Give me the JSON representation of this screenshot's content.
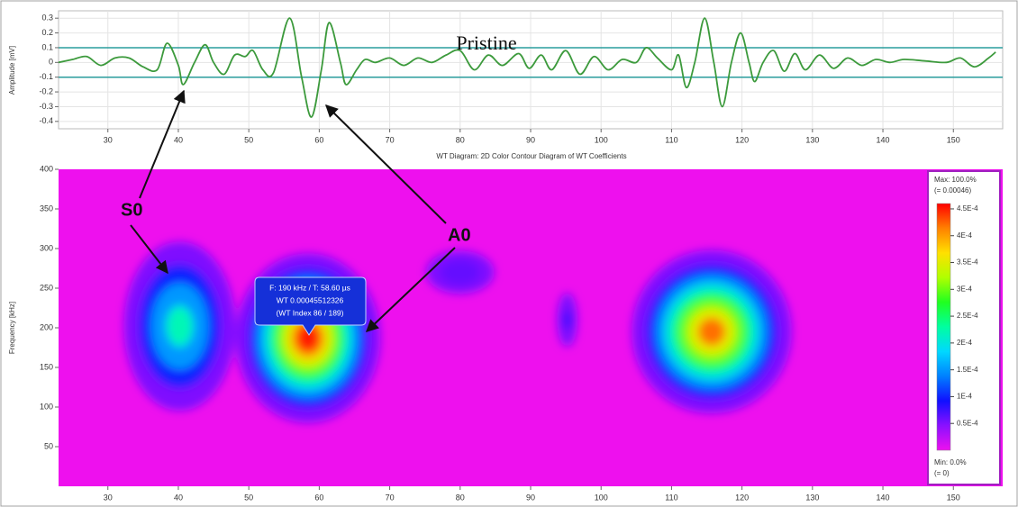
{
  "chart_data": [
    {
      "type": "line",
      "ylabel": "Amplitude [mV]",
      "xlim": [
        23,
        157
      ],
      "xticks": [
        30,
        40,
        50,
        60,
        70,
        80,
        90,
        100,
        110,
        120,
        130,
        140,
        150
      ],
      "ylim": [
        -0.45,
        0.35
      ],
      "yticks": [
        0.3,
        0.2,
        0.1,
        0,
        -0.1,
        -0.2,
        -0.3,
        -0.4
      ],
      "grid": true,
      "hlines": [
        0.1,
        -0.1
      ],
      "hline_color": "#2a9d9d",
      "x": [
        23,
        25,
        27,
        29,
        31,
        33,
        35,
        37,
        38.4,
        40,
        40.7,
        42.3,
        43.8,
        45,
        46.5,
        48,
        49.5,
        50.6,
        52,
        53.5,
        55.8,
        57.5,
        58.9,
        60.3,
        61.4,
        63,
        63.8,
        65.3,
        66.5,
        68,
        70,
        72,
        74,
        76,
        78,
        80,
        82,
        84,
        86,
        88.3,
        89.8,
        91.5,
        93,
        95,
        97,
        99,
        101,
        103,
        105,
        106.4,
        108,
        110,
        111,
        112.1,
        113.3,
        114.7,
        116,
        117.2,
        118.5,
        119.8,
        121,
        121.8,
        123,
        124.5,
        126,
        127.5,
        129,
        131,
        133,
        135,
        137,
        139,
        141,
        143,
        146,
        149,
        151,
        153,
        155,
        156
      ],
      "series": [
        {
          "color": "#3c9a3c",
          "values": [
            0.0,
            0.02,
            0.04,
            -0.02,
            0.03,
            0.03,
            -0.03,
            -0.05,
            0.13,
            -0.02,
            -0.15,
            0.0,
            0.12,
            0.0,
            -0.08,
            0.05,
            0.04,
            0.08,
            -0.05,
            -0.07,
            0.3,
            -0.1,
            -0.37,
            -0.05,
            0.27,
            0.0,
            -0.15,
            -0.05,
            0.02,
            0.0,
            0.03,
            -0.02,
            0.03,
            0.0,
            0.05,
            0.08,
            -0.05,
            0.05,
            -0.02,
            0.06,
            -0.04,
            0.05,
            -0.05,
            0.08,
            -0.08,
            0.04,
            -0.05,
            0.02,
            0.0,
            0.1,
            0.03,
            -0.05,
            0.05,
            -0.17,
            0.0,
            0.3,
            0.0,
            -0.3,
            0.0,
            0.2,
            0.0,
            -0.13,
            0.0,
            0.08,
            -0.06,
            0.06,
            -0.05,
            0.05,
            -0.04,
            0.03,
            -0.02,
            0.02,
            0.0,
            0.02,
            0.01,
            0.0,
            0.03,
            -0.03,
            0.03,
            0.07
          ]
        }
      ]
    },
    {
      "type": "contour",
      "title": "WT Diagram: 2D Color Contour Diagram of WT Coefficients",
      "ylabel": "Frequency [kHz]",
      "xlim": [
        23,
        157
      ],
      "xticks": [
        30,
        40,
        50,
        60,
        70,
        80,
        90,
        100,
        110,
        120,
        130,
        140,
        150
      ],
      "ylim": [
        0,
        400
      ],
      "yticks": [
        400,
        350,
        300,
        250,
        200,
        150,
        100,
        50
      ],
      "blobs": [
        {
          "t": 80,
          "f": 270,
          "value": 6e-05,
          "st": 8,
          "sf": 45
        },
        {
          "t": 40.2,
          "f": 202,
          "value": 0.00022,
          "st": 4.6,
          "sf": 62
        },
        {
          "t": 58.4,
          "f": 187,
          "value": 0.00045,
          "st": 4.9,
          "sf": 51
        },
        {
          "t": 95.2,
          "f": 210,
          "value": 8e-05,
          "st": 1.5,
          "sf": 35
        },
        {
          "t": 115.7,
          "f": 195,
          "value": 0.00042,
          "st": 5.5,
          "sf": 50
        }
      ],
      "colorbar": {
        "max_label": "Max: 100.0%",
        "max_value_label": "(= 0.00046)",
        "min_label": "Min: 0.0%",
        "min_value_label": "(= 0)",
        "clim": [
          0,
          0.00046
        ],
        "ticks": [
          {
            "value": 0.00045,
            "label": "4.5E-4"
          },
          {
            "value": 0.0004,
            "label": "4E-4"
          },
          {
            "value": 0.00035,
            "label": "3.5E-4"
          },
          {
            "value": 0.0003,
            "label": "3E-4"
          },
          {
            "value": 0.00025,
            "label": "2.5E-4"
          },
          {
            "value": 0.0002,
            "label": "2E-4"
          },
          {
            "value": 0.00015,
            "label": "1.5E-4"
          },
          {
            "value": 0.0001,
            "label": "1E-4"
          },
          {
            "value": 5e-05,
            "label": "0.5E-4"
          }
        ],
        "colors": [
          "#ee10ee",
          "#8a10ff",
          "#1010ff",
          "#0080ff",
          "#00d8ff",
          "#00ffa0",
          "#20ff20",
          "#b0ff00",
          "#ffe000",
          "#ff8000",
          "#ff0000"
        ]
      },
      "tooltip": [
        "F: 190 kHz / T: 58.60 µs",
        "WT 0.00045512326",
        "(WT Index 86 / 189)"
      ]
    }
  ],
  "annotations": {
    "pristine": "Pristine",
    "s0": "S0",
    "a0": "A0"
  }
}
